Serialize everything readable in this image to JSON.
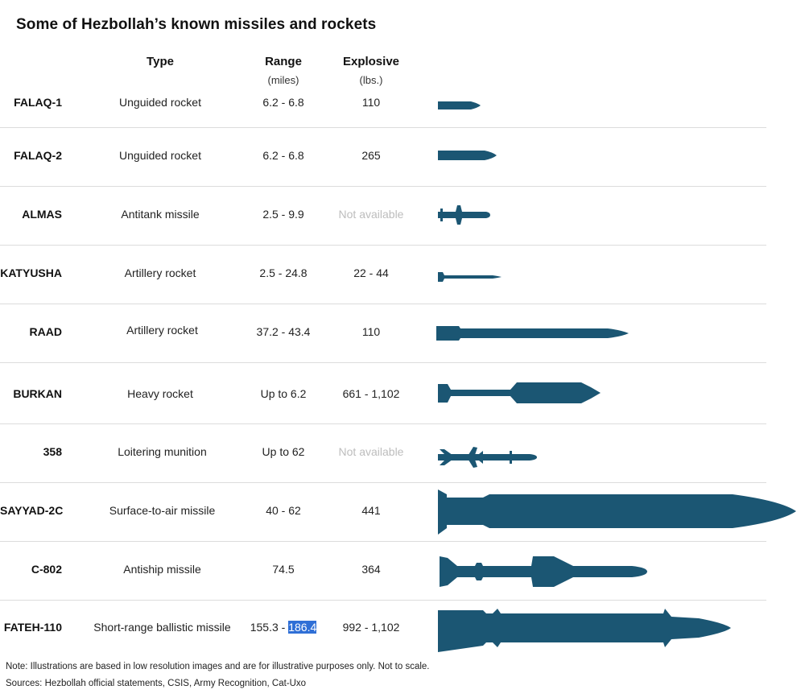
{
  "title": "Some of Hezbollah’s known missiles and rockets",
  "headers": {
    "type": "Type",
    "range": "Range",
    "range_unit": "(miles)",
    "explosive": "Explosive",
    "explosive_unit": "(lbs.)"
  },
  "rows": [
    {
      "name": "FALAQ-1",
      "type": "Unguided rocket",
      "range": "6.2 - 6.8",
      "explosive": "110"
    },
    {
      "name": "FALAQ-2",
      "type": "Unguided rocket",
      "range": "6.2 - 6.8",
      "explosive": "265"
    },
    {
      "name": "ALMAS",
      "type": "Antitank missile",
      "range": "2.5 - 9.9",
      "explosive": "Not available"
    },
    {
      "name": "KATYUSHA",
      "type": "Artillery rocket",
      "range": "2.5 - 24.8",
      "explosive": "22 - 44"
    },
    {
      "name": "RAAD",
      "type": "Artillery rocket",
      "range": "37.2 - 43.4",
      "explosive": "110"
    },
    {
      "name": "BURKAN",
      "type": "Heavy rocket",
      "range": "Up to 6.2",
      "explosive": "661 - 1,102"
    },
    {
      "name": "358",
      "type": "Loitering munition",
      "range": "Up to 62",
      "explosive": "Not available"
    },
    {
      "name": "SAYYAD-2C",
      "type": "Surface-to-air missile",
      "range": "40 - 62",
      "explosive": "441"
    },
    {
      "name": "C-802",
      "type": "Antiship missile",
      "range": "74.5",
      "explosive": "364"
    },
    {
      "name": "FATEH-110",
      "type": "Short-range ballistic missile",
      "range_a": "155.3 - ",
      "range_b": "186.4",
      "explosive": "992 - 1,102"
    }
  ],
  "note": "Note: Illustrations are based in low resolution images and are for illustrative purposes only. Not to scale.",
  "sources": "Sources: Hezbollah official statements, CSIS, Army Recognition, Cat-Uxo",
  "colors": {
    "missile": "#1b5673",
    "highlight": "#2f6fd6",
    "na_text": "#bdbdbd",
    "divider": "#dcdcdc"
  }
}
